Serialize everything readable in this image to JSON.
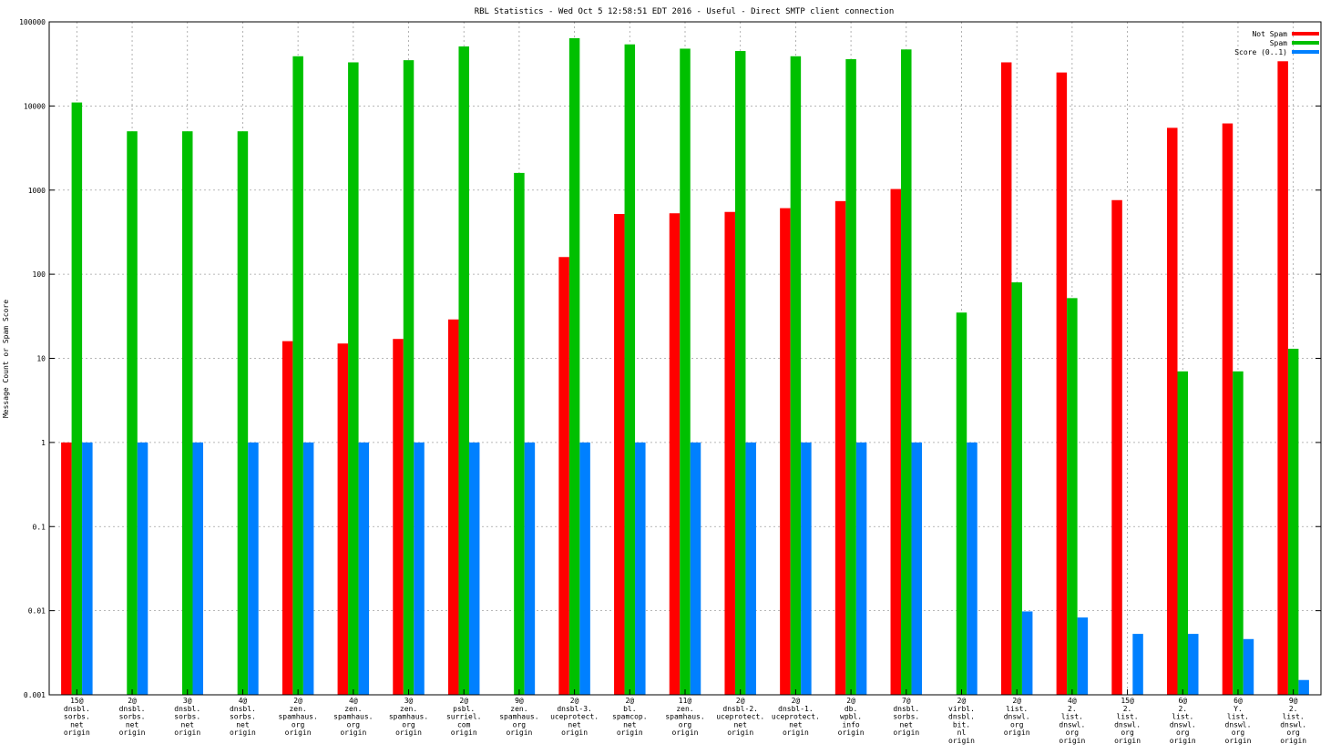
{
  "chart_data": {
    "type": "bar",
    "title": "RBL Statistics - Wed Oct  5 12:58:51 EDT 2016 - Useful - Direct SMTP client connection",
    "xlabel": "",
    "ylabel": "Message Count or Spam Score",
    "yscale": "log",
    "ylim": [
      0.001,
      100000
    ],
    "yticks": [
      "0.001",
      "0.01",
      "0.1",
      "1",
      "10",
      "100",
      "1000",
      "10000",
      "100000"
    ],
    "grid": true,
    "legend_position": "top-right",
    "categories": [
      [
        "15@",
        "dnsbl.",
        "sorbs.",
        "net",
        "origin"
      ],
      [
        "2@",
        "dnsbl.",
        "sorbs.",
        "net",
        "origin"
      ],
      [
        "3@",
        "dnsbl.",
        "sorbs.",
        "net",
        "origin"
      ],
      [
        "4@",
        "dnsbl.",
        "sorbs.",
        "net",
        "origin"
      ],
      [
        "2@",
        "zen.",
        "spamhaus.",
        "org",
        "origin"
      ],
      [
        "4@",
        "zen.",
        "spamhaus.",
        "org",
        "origin"
      ],
      [
        "3@",
        "zen.",
        "spamhaus.",
        "org",
        "origin"
      ],
      [
        "2@",
        "psbl.",
        "surriel.",
        "com",
        "origin"
      ],
      [
        "9@",
        "zen.",
        "spamhaus.",
        "org",
        "origin"
      ],
      [
        "2@",
        "dnsbl-3.",
        "uceprotect.",
        "net",
        "origin"
      ],
      [
        "2@",
        "bl.",
        "spamcop.",
        "net",
        "origin"
      ],
      [
        "11@",
        "zen.",
        "spamhaus.",
        "org",
        "origin"
      ],
      [
        "2@",
        "dnsbl-2.",
        "uceprotect.",
        "net",
        "origin"
      ],
      [
        "2@",
        "dnsbl-1.",
        "uceprotect.",
        "net",
        "origin"
      ],
      [
        "2@",
        "db.",
        "wpbl.",
        "info",
        "origin"
      ],
      [
        "7@",
        "dnsbl.",
        "sorbs.",
        "net",
        "origin"
      ],
      [
        "2@",
        "virbl.",
        "dnsbl.",
        "bit.",
        "nl",
        "origin"
      ],
      [
        "2@",
        "list.",
        "dnswl.",
        "org",
        "origin"
      ],
      [
        "4@",
        "2.",
        "list.",
        "dnswl.",
        "org",
        "origin"
      ],
      [
        "15@",
        "2.",
        "list.",
        "dnswl.",
        "org",
        "origin"
      ],
      [
        "6@",
        "2.",
        "list.",
        "dnswl.",
        "org",
        "origin"
      ],
      [
        "6@",
        "Y.",
        "list.",
        "dnswl.",
        "org",
        "origin"
      ],
      [
        "9@",
        "2.",
        "list.",
        "dnswl.",
        "org",
        "origin"
      ]
    ],
    "series": [
      {
        "name": "Not Spam",
        "color": "#ff0000",
        "values": [
          1,
          null,
          null,
          null,
          16,
          15,
          17,
          29,
          null,
          160,
          520,
          530,
          550,
          610,
          740,
          1030,
          null,
          33000,
          25000,
          760,
          5500,
          6200,
          34000
        ]
      },
      {
        "name": "Spam",
        "color": "#00c000",
        "values": [
          11000,
          5000,
          5000,
          5000,
          39000,
          33000,
          35000,
          51000,
          1600,
          64000,
          54000,
          48000,
          45000,
          39000,
          36000,
          47000,
          35,
          80,
          52,
          null,
          7,
          7,
          13
        ]
      },
      {
        "name": "Score (0..1)",
        "color": "#0080ff",
        "values": [
          1,
          1,
          1,
          1,
          1,
          1,
          1,
          1,
          1,
          1,
          1,
          1,
          1,
          1,
          1,
          1,
          1,
          0.0098,
          0.0083,
          0.0053,
          0.0053,
          0.0046,
          0.0015
        ]
      }
    ]
  }
}
